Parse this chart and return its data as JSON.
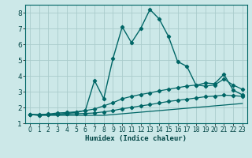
{
  "xlabel": "Humidex (Indice chaleur)",
  "background_color": "#cce8e8",
  "grid_color": "#aacccc",
  "line_color": "#006666",
  "xlim": [
    -0.5,
    23.5
  ],
  "ylim": [
    1.0,
    8.5
  ],
  "yticks": [
    1,
    2,
    3,
    4,
    5,
    6,
    7,
    8
  ],
  "xticks": [
    0,
    1,
    2,
    3,
    4,
    5,
    6,
    7,
    8,
    9,
    10,
    11,
    12,
    13,
    14,
    15,
    16,
    17,
    18,
    19,
    20,
    21,
    22,
    23
  ],
  "series": [
    {
      "x": [
        0,
        1,
        2,
        3,
        4,
        5,
        6,
        7,
        8,
        9,
        10,
        11,
        12,
        13,
        14,
        15,
        16,
        17,
        18,
        19,
        20,
        21,
        22,
        23
      ],
      "y": [
        1.55,
        1.5,
        1.5,
        1.5,
        1.5,
        1.5,
        1.5,
        1.5,
        1.5,
        1.55,
        1.6,
        1.65,
        1.7,
        1.75,
        1.8,
        1.85,
        1.9,
        1.95,
        2.0,
        2.05,
        2.1,
        2.15,
        2.2,
        2.25
      ],
      "marker": false,
      "lw": 0.9
    },
    {
      "x": [
        0,
        1,
        2,
        3,
        4,
        5,
        6,
        7,
        8,
        9,
        10,
        11,
        12,
        13,
        14,
        15,
        16,
        17,
        18,
        19,
        20,
        21,
        22,
        23
      ],
      "y": [
        1.55,
        1.52,
        1.55,
        1.55,
        1.58,
        1.6,
        1.62,
        1.65,
        1.72,
        1.8,
        1.92,
        2.0,
        2.1,
        2.18,
        2.28,
        2.38,
        2.45,
        2.52,
        2.6,
        2.68,
        2.72,
        2.78,
        2.75,
        2.7
      ],
      "marker": true,
      "lw": 0.9
    },
    {
      "x": [
        0,
        1,
        2,
        3,
        4,
        5,
        6,
        7,
        8,
        9,
        10,
        11,
        12,
        13,
        14,
        15,
        16,
        17,
        18,
        19,
        20,
        21,
        22,
        23
      ],
      "y": [
        1.55,
        1.55,
        1.58,
        1.65,
        1.68,
        1.72,
        1.8,
        1.9,
        2.1,
        2.3,
        2.55,
        2.7,
        2.82,
        2.92,
        3.05,
        3.15,
        3.25,
        3.35,
        3.42,
        3.35,
        3.42,
        3.8,
        3.42,
        3.15
      ],
      "marker": true,
      "lw": 0.9
    },
    {
      "x": [
        0,
        1,
        2,
        3,
        4,
        5,
        6,
        7,
        8,
        9,
        10,
        11,
        12,
        13,
        14,
        15,
        16,
        17,
        18,
        19,
        20,
        21,
        22,
        23
      ],
      "y": [
        1.55,
        1.52,
        1.55,
        1.58,
        1.62,
        1.7,
        1.8,
        3.7,
        2.55,
        5.1,
        7.1,
        6.1,
        7.0,
        8.2,
        7.6,
        6.5,
        4.9,
        4.6,
        3.4,
        3.55,
        3.5,
        4.1,
        3.1,
        2.8
      ],
      "marker": true,
      "lw": 1.0
    }
  ]
}
